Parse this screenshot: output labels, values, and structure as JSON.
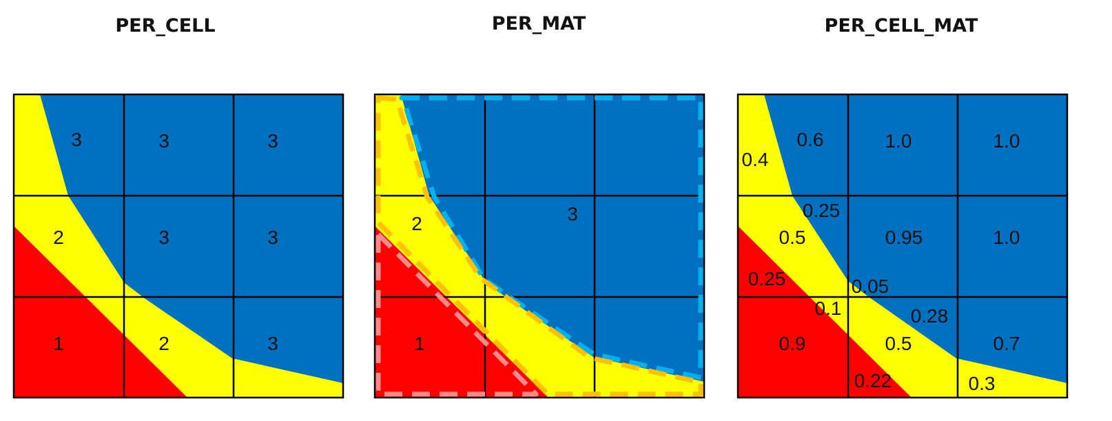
{
  "colors": {
    "material_1": "#ff0000",
    "material_2": "#ffff00",
    "material_3": "#0070c0",
    "grid_line": "#000000",
    "outline_material_1": "#ff8a8a",
    "outline_material_2": "#ffc000",
    "outline_material_3": "#00b0f0"
  },
  "panels": [
    {
      "title": "PER_CELL",
      "labels": [
        "3",
        "3",
        "3",
        "2",
        "3",
        "3",
        "1",
        "2",
        "3"
      ]
    },
    {
      "title": "PER_MAT",
      "labels": [
        "2",
        "3",
        "1"
      ]
    },
    {
      "title": "PER_CELL_MAT",
      "labels": [
        "0.6",
        "1.0",
        "1.0",
        "0.4",
        "0.25",
        "0.5",
        "0.95",
        "1.0",
        "0.25",
        "0.05",
        "0.1",
        "0.28",
        "0.9",
        "0.5",
        "0.7",
        "0.22",
        "0.3"
      ]
    }
  ]
}
